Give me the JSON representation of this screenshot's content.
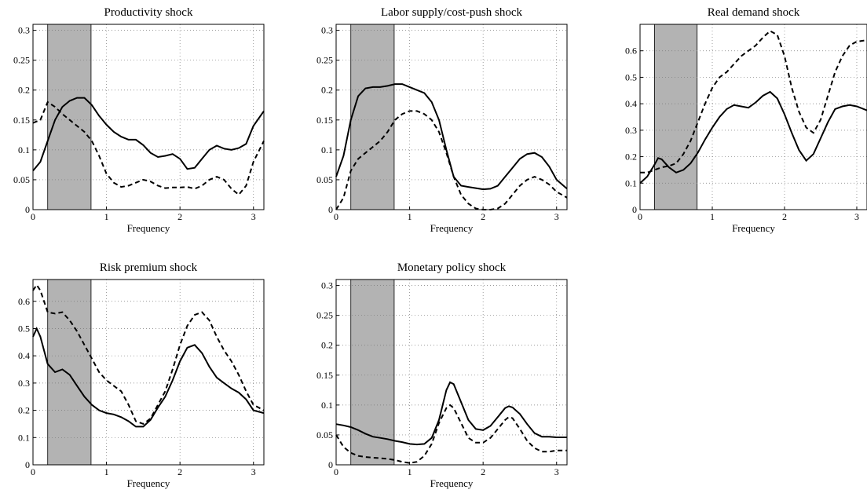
{
  "chart_data": [
    {
      "type": "line",
      "title": "Productivity shock",
      "xlabel": "Frequency",
      "xlim": [
        0,
        3.1416
      ],
      "ylim": [
        0,
        0.31
      ],
      "xticks": [
        "0",
        "1",
        "2",
        "3"
      ],
      "yticks": [
        "0",
        "0.05",
        "0.1",
        "0.15",
        "0.2",
        "0.25",
        "0.3"
      ],
      "shaded_band": [
        0.2,
        0.79
      ],
      "grid": true,
      "series": [
        {
          "style": "solid",
          "x": [
            0,
            0.1,
            0.2,
            0.3,
            0.4,
            0.5,
            0.6,
            0.7,
            0.8,
            0.9,
            1.0,
            1.1,
            1.2,
            1.3,
            1.4,
            1.5,
            1.6,
            1.7,
            1.8,
            1.9,
            2.0,
            2.1,
            2.2,
            2.3,
            2.4,
            2.5,
            2.6,
            2.7,
            2.8,
            2.9,
            3.0,
            3.1416
          ],
          "y": [
            0.065,
            0.08,
            0.115,
            0.15,
            0.172,
            0.182,
            0.187,
            0.187,
            0.175,
            0.157,
            0.142,
            0.13,
            0.122,
            0.117,
            0.117,
            0.108,
            0.095,
            0.088,
            0.09,
            0.093,
            0.085,
            0.068,
            0.07,
            0.085,
            0.1,
            0.107,
            0.102,
            0.1,
            0.103,
            0.11,
            0.14,
            0.165
          ]
        },
        {
          "style": "dashed",
          "x": [
            0,
            0.1,
            0.2,
            0.3,
            0.4,
            0.5,
            0.6,
            0.7,
            0.8,
            0.9,
            1.0,
            1.1,
            1.2,
            1.3,
            1.4,
            1.5,
            1.6,
            1.7,
            1.8,
            1.9,
            2.0,
            2.1,
            2.2,
            2.3,
            2.4,
            2.5,
            2.6,
            2.7,
            2.8,
            2.9,
            3.0,
            3.1416
          ],
          "y": [
            0.145,
            0.15,
            0.18,
            0.172,
            0.16,
            0.15,
            0.14,
            0.13,
            0.115,
            0.09,
            0.06,
            0.045,
            0.038,
            0.04,
            0.045,
            0.05,
            0.047,
            0.04,
            0.036,
            0.037,
            0.037,
            0.038,
            0.035,
            0.04,
            0.05,
            0.055,
            0.05,
            0.035,
            0.025,
            0.04,
            0.08,
            0.115
          ]
        }
      ]
    },
    {
      "type": "line",
      "title": "Labor supply/cost-push shock",
      "xlabel": "Frequency",
      "xlim": [
        0,
        3.1416
      ],
      "ylim": [
        0,
        0.31
      ],
      "xticks": [
        "0",
        "1",
        "2",
        "3"
      ],
      "yticks": [
        "0",
        "0.05",
        "0.1",
        "0.15",
        "0.2",
        "0.25",
        "0.3"
      ],
      "shaded_band": [
        0.2,
        0.79
      ],
      "grid": true,
      "series": [
        {
          "style": "solid",
          "x": [
            0,
            0.1,
            0.2,
            0.3,
            0.4,
            0.5,
            0.6,
            0.7,
            0.8,
            0.9,
            1.0,
            1.1,
            1.2,
            1.3,
            1.4,
            1.5,
            1.6,
            1.7,
            1.8,
            1.9,
            2.0,
            2.1,
            2.2,
            2.3,
            2.4,
            2.5,
            2.6,
            2.7,
            2.8,
            2.9,
            3.0,
            3.1416
          ],
          "y": [
            0.055,
            0.09,
            0.15,
            0.19,
            0.203,
            0.205,
            0.205,
            0.207,
            0.21,
            0.21,
            0.205,
            0.2,
            0.195,
            0.18,
            0.15,
            0.1,
            0.055,
            0.04,
            0.038,
            0.036,
            0.034,
            0.035,
            0.04,
            0.055,
            0.07,
            0.085,
            0.093,
            0.095,
            0.088,
            0.072,
            0.05,
            0.035
          ]
        },
        {
          "style": "dashed",
          "x": [
            0,
            0.1,
            0.2,
            0.3,
            0.4,
            0.5,
            0.6,
            0.7,
            0.8,
            0.9,
            1.0,
            1.1,
            1.2,
            1.3,
            1.4,
            1.5,
            1.6,
            1.7,
            1.8,
            1.9,
            2.0,
            2.1,
            2.2,
            2.3,
            2.4,
            2.5,
            2.6,
            2.7,
            2.8,
            2.9,
            3.0,
            3.1416
          ],
          "y": [
            0.0,
            0.02,
            0.065,
            0.085,
            0.095,
            0.105,
            0.115,
            0.13,
            0.15,
            0.16,
            0.165,
            0.165,
            0.16,
            0.15,
            0.13,
            0.095,
            0.055,
            0.025,
            0.01,
            0.002,
            0.0,
            0.0,
            0.002,
            0.01,
            0.025,
            0.04,
            0.05,
            0.055,
            0.05,
            0.042,
            0.03,
            0.02
          ]
        }
      ]
    },
    {
      "type": "line",
      "title": "Real demand shock",
      "xlabel": "Frequency",
      "xlim": [
        0,
        3.1416
      ],
      "ylim": [
        0,
        0.7
      ],
      "xticks": [
        "0",
        "1",
        "2",
        "3"
      ],
      "yticks": [
        "0",
        "0.1",
        "0.2",
        "0.3",
        "0.4",
        "0.5",
        "0.6"
      ],
      "shaded_band": [
        0.2,
        0.79
      ],
      "grid": true,
      "series": [
        {
          "style": "solid",
          "x": [
            0,
            0.1,
            0.2,
            0.25,
            0.3,
            0.4,
            0.5,
            0.6,
            0.7,
            0.8,
            0.9,
            1.0,
            1.1,
            1.2,
            1.3,
            1.4,
            1.5,
            1.6,
            1.7,
            1.8,
            1.9,
            2.0,
            2.1,
            2.2,
            2.3,
            2.4,
            2.5,
            2.6,
            2.7,
            2.8,
            2.9,
            3.0,
            3.1416
          ],
          "y": [
            0.1,
            0.125,
            0.17,
            0.195,
            0.19,
            0.16,
            0.14,
            0.15,
            0.175,
            0.215,
            0.265,
            0.31,
            0.35,
            0.38,
            0.395,
            0.39,
            0.385,
            0.405,
            0.43,
            0.445,
            0.42,
            0.36,
            0.29,
            0.225,
            0.185,
            0.21,
            0.27,
            0.33,
            0.38,
            0.39,
            0.395,
            0.39,
            0.375
          ]
        },
        {
          "style": "dashed",
          "x": [
            0,
            0.1,
            0.2,
            0.3,
            0.4,
            0.5,
            0.6,
            0.7,
            0.8,
            0.9,
            1.0,
            1.1,
            1.2,
            1.3,
            1.4,
            1.5,
            1.6,
            1.7,
            1.8,
            1.9,
            2.0,
            2.1,
            2.2,
            2.3,
            2.4,
            2.5,
            2.6,
            2.7,
            2.8,
            2.9,
            3.0,
            3.1416
          ],
          "y": [
            0.14,
            0.14,
            0.15,
            0.16,
            0.165,
            0.175,
            0.21,
            0.26,
            0.33,
            0.4,
            0.46,
            0.5,
            0.52,
            0.55,
            0.58,
            0.6,
            0.62,
            0.65,
            0.675,
            0.66,
            0.58,
            0.46,
            0.37,
            0.31,
            0.29,
            0.34,
            0.43,
            0.52,
            0.58,
            0.62,
            0.635,
            0.64
          ]
        }
      ]
    },
    {
      "type": "line",
      "title": "Risk premium shock",
      "xlabel": "Frequency",
      "xlim": [
        0,
        3.1416
      ],
      "ylim": [
        0,
        0.68
      ],
      "xticks": [
        "0",
        "1",
        "2",
        "3"
      ],
      "yticks": [
        "0",
        "0.1",
        "0.2",
        "0.3",
        "0.4",
        "0.5",
        "0.6"
      ],
      "shaded_band": [
        0.2,
        0.79
      ],
      "grid": true,
      "series": [
        {
          "style": "solid",
          "x": [
            0,
            0.05,
            0.1,
            0.2,
            0.3,
            0.4,
            0.5,
            0.6,
            0.7,
            0.8,
            0.9,
            1.0,
            1.1,
            1.2,
            1.3,
            1.4,
            1.5,
            1.6,
            1.7,
            1.8,
            1.9,
            2.0,
            2.1,
            2.2,
            2.3,
            2.4,
            2.5,
            2.6,
            2.7,
            2.8,
            2.9,
            3.0,
            3.1416
          ],
          "y": [
            0.47,
            0.5,
            0.47,
            0.37,
            0.34,
            0.35,
            0.33,
            0.29,
            0.25,
            0.22,
            0.2,
            0.19,
            0.185,
            0.175,
            0.16,
            0.14,
            0.14,
            0.165,
            0.21,
            0.25,
            0.31,
            0.38,
            0.43,
            0.44,
            0.41,
            0.36,
            0.32,
            0.3,
            0.28,
            0.265,
            0.24,
            0.2,
            0.19
          ]
        },
        {
          "style": "dashed",
          "x": [
            0,
            0.05,
            0.1,
            0.2,
            0.3,
            0.4,
            0.5,
            0.6,
            0.7,
            0.8,
            0.9,
            1.0,
            1.1,
            1.2,
            1.3,
            1.4,
            1.5,
            1.6,
            1.7,
            1.8,
            1.9,
            2.0,
            2.1,
            2.2,
            2.3,
            2.4,
            2.5,
            2.6,
            2.7,
            2.8,
            2.9,
            3.0,
            3.1416
          ],
          "y": [
            0.64,
            0.66,
            0.64,
            0.56,
            0.555,
            0.56,
            0.53,
            0.49,
            0.44,
            0.39,
            0.34,
            0.31,
            0.29,
            0.27,
            0.22,
            0.16,
            0.15,
            0.17,
            0.22,
            0.27,
            0.35,
            0.44,
            0.51,
            0.55,
            0.56,
            0.53,
            0.47,
            0.42,
            0.38,
            0.33,
            0.27,
            0.22,
            0.2
          ]
        }
      ]
    },
    {
      "type": "line",
      "title": "Monetary policy shock",
      "xlabel": "Frequency",
      "xlim": [
        0,
        3.1416
      ],
      "ylim": [
        0,
        0.31
      ],
      "xticks": [
        "0",
        "1",
        "2",
        "3"
      ],
      "yticks": [
        "0",
        "0.05",
        "0.1",
        "0.15",
        "0.2",
        "0.25",
        "0.3"
      ],
      "shaded_band": [
        0.2,
        0.79
      ],
      "grid": true,
      "series": [
        {
          "style": "solid",
          "x": [
            0,
            0.1,
            0.2,
            0.3,
            0.4,
            0.5,
            0.6,
            0.7,
            0.8,
            0.9,
            1.0,
            1.1,
            1.2,
            1.3,
            1.4,
            1.5,
            1.55,
            1.6,
            1.7,
            1.8,
            1.9,
            2.0,
            2.1,
            2.2,
            2.3,
            2.35,
            2.4,
            2.5,
            2.6,
            2.7,
            2.8,
            2.9,
            3.0,
            3.1416
          ],
          "y": [
            0.068,
            0.066,
            0.063,
            0.058,
            0.052,
            0.047,
            0.045,
            0.043,
            0.04,
            0.038,
            0.035,
            0.034,
            0.035,
            0.045,
            0.075,
            0.125,
            0.138,
            0.135,
            0.105,
            0.075,
            0.06,
            0.058,
            0.065,
            0.08,
            0.095,
            0.098,
            0.096,
            0.085,
            0.068,
            0.053,
            0.047,
            0.047,
            0.046,
            0.046
          ]
        },
        {
          "style": "dashed",
          "x": [
            0,
            0.1,
            0.2,
            0.3,
            0.4,
            0.5,
            0.6,
            0.7,
            0.8,
            0.9,
            1.0,
            1.1,
            1.2,
            1.3,
            1.4,
            1.5,
            1.55,
            1.6,
            1.7,
            1.8,
            1.9,
            2.0,
            2.1,
            2.2,
            2.3,
            2.35,
            2.4,
            2.5,
            2.6,
            2.7,
            2.8,
            2.9,
            3.0,
            3.1416
          ],
          "y": [
            0.05,
            0.03,
            0.02,
            0.015,
            0.013,
            0.012,
            0.011,
            0.01,
            0.008,
            0.005,
            0.003,
            0.005,
            0.015,
            0.035,
            0.07,
            0.095,
            0.1,
            0.095,
            0.07,
            0.045,
            0.037,
            0.037,
            0.045,
            0.06,
            0.075,
            0.08,
            0.078,
            0.06,
            0.04,
            0.028,
            0.022,
            0.022,
            0.024,
            0.024
          ]
        }
      ]
    }
  ]
}
